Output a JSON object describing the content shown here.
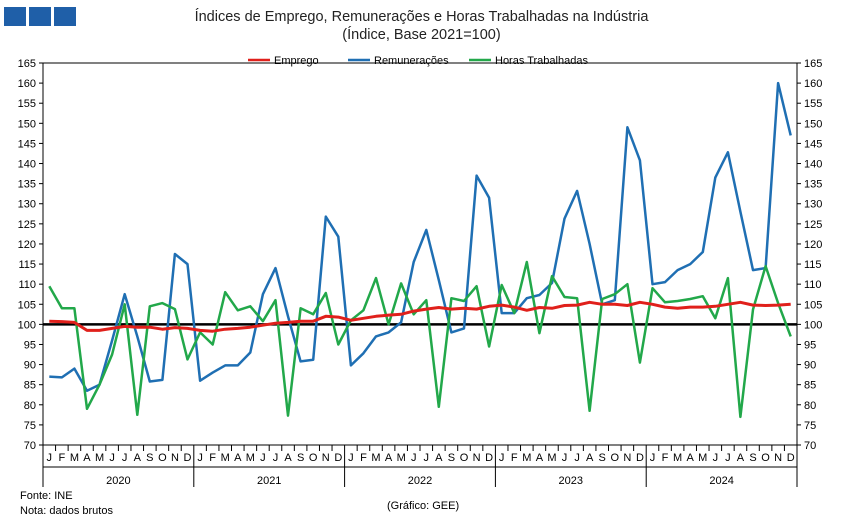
{
  "logo": {
    "color": "#1f5fa8"
  },
  "chart_data": {
    "type": "line",
    "title": "Índices de Emprego, Remunerações e Horas Trabalhadas na Indústria",
    "subtitle": "(Índice, Base 2021=100)",
    "month_labels": [
      "J",
      "F",
      "M",
      "A",
      "M",
      "J",
      "J",
      "A",
      "S",
      "O",
      "N",
      "D"
    ],
    "years": [
      "2020",
      "2021",
      "2022",
      "2023",
      "2024"
    ],
    "yticks": [
      "70",
      "75",
      "80",
      "85",
      "90",
      "95",
      "100",
      "105",
      "110",
      "115",
      "120",
      "125",
      "130",
      "135",
      "140",
      "145",
      "150",
      "155",
      "160",
      "165"
    ],
    "ylim": [
      70,
      165
    ],
    "reference_line": 100,
    "legend_position": "top",
    "grid": false,
    "series": [
      {
        "name": "Emprego",
        "color": "#e0201b",
        "values": [
          100.8,
          100.7,
          100.5,
          98.5,
          98.5,
          99.0,
          99.5,
          99.3,
          99.3,
          98.8,
          99.2,
          99.0,
          98.5,
          98.3,
          98.8,
          99.0,
          99.3,
          99.8,
          100.3,
          100.5,
          100.8,
          100.8,
          102.0,
          101.8,
          101.0,
          101.5,
          102.0,
          102.3,
          102.5,
          103.3,
          103.8,
          104.2,
          103.8,
          104.0,
          103.8,
          104.5,
          104.8,
          104.3,
          103.5,
          104.2,
          104.0,
          104.7,
          104.8,
          105.5,
          105.0,
          105.0,
          104.7,
          105.5,
          105.0,
          104.3,
          104.0,
          104.3,
          104.3,
          104.5,
          105.0,
          105.5,
          104.8,
          104.7,
          104.8,
          105.0
        ]
      },
      {
        "name": "Remunerações",
        "color": "#1f6fb3",
        "values": [
          87.0,
          86.8,
          89.0,
          83.5,
          85.0,
          96.0,
          107.5,
          97.0,
          85.8,
          86.2,
          117.5,
          115.0,
          86.0,
          88.0,
          89.8,
          89.8,
          93.0,
          107.5,
          114.0,
          102.0,
          90.8,
          91.2,
          126.8,
          121.8,
          89.8,
          92.8,
          97.0,
          98.0,
          100.5,
          115.5,
          123.5,
          111.0,
          98.0,
          99.0,
          137.0,
          131.5,
          102.8,
          102.8,
          106.5,
          107.3,
          110.3,
          126.3,
          133.2,
          120.0,
          105.0,
          106.0,
          149.0,
          140.8,
          110.0,
          110.5,
          113.5,
          115.0,
          118.0,
          136.5,
          142.8,
          128.0,
          113.5,
          114.0,
          160.0,
          147.0
        ]
      },
      {
        "name": "Horas Trabalhadas",
        "color": "#22a84a",
        "values": [
          109.5,
          104.0,
          104.0,
          79.0,
          85.0,
          92.5,
          105.0,
          77.5,
          104.5,
          105.3,
          103.8,
          91.3,
          98.0,
          95.0,
          108.0,
          103.5,
          104.5,
          100.8,
          106.0,
          77.3,
          104.0,
          102.5,
          107.8,
          95.0,
          101.0,
          103.5,
          111.5,
          100.0,
          110.2,
          102.5,
          106.0,
          79.5,
          106.5,
          105.8,
          109.5,
          94.5,
          109.8,
          102.8,
          115.5,
          97.8,
          112.0,
          106.8,
          106.5,
          78.5,
          106.3,
          107.5,
          110.0,
          90.5,
          109.0,
          105.5,
          105.8,
          106.3,
          107.0,
          101.5,
          111.5,
          77.0,
          103.7,
          114.5,
          105.3,
          97.0
        ]
      }
    ]
  },
  "footer": {
    "source": "Fonte: INE",
    "note": "Nota: dados brutos",
    "credit": "(Gráfico: GEE)"
  }
}
